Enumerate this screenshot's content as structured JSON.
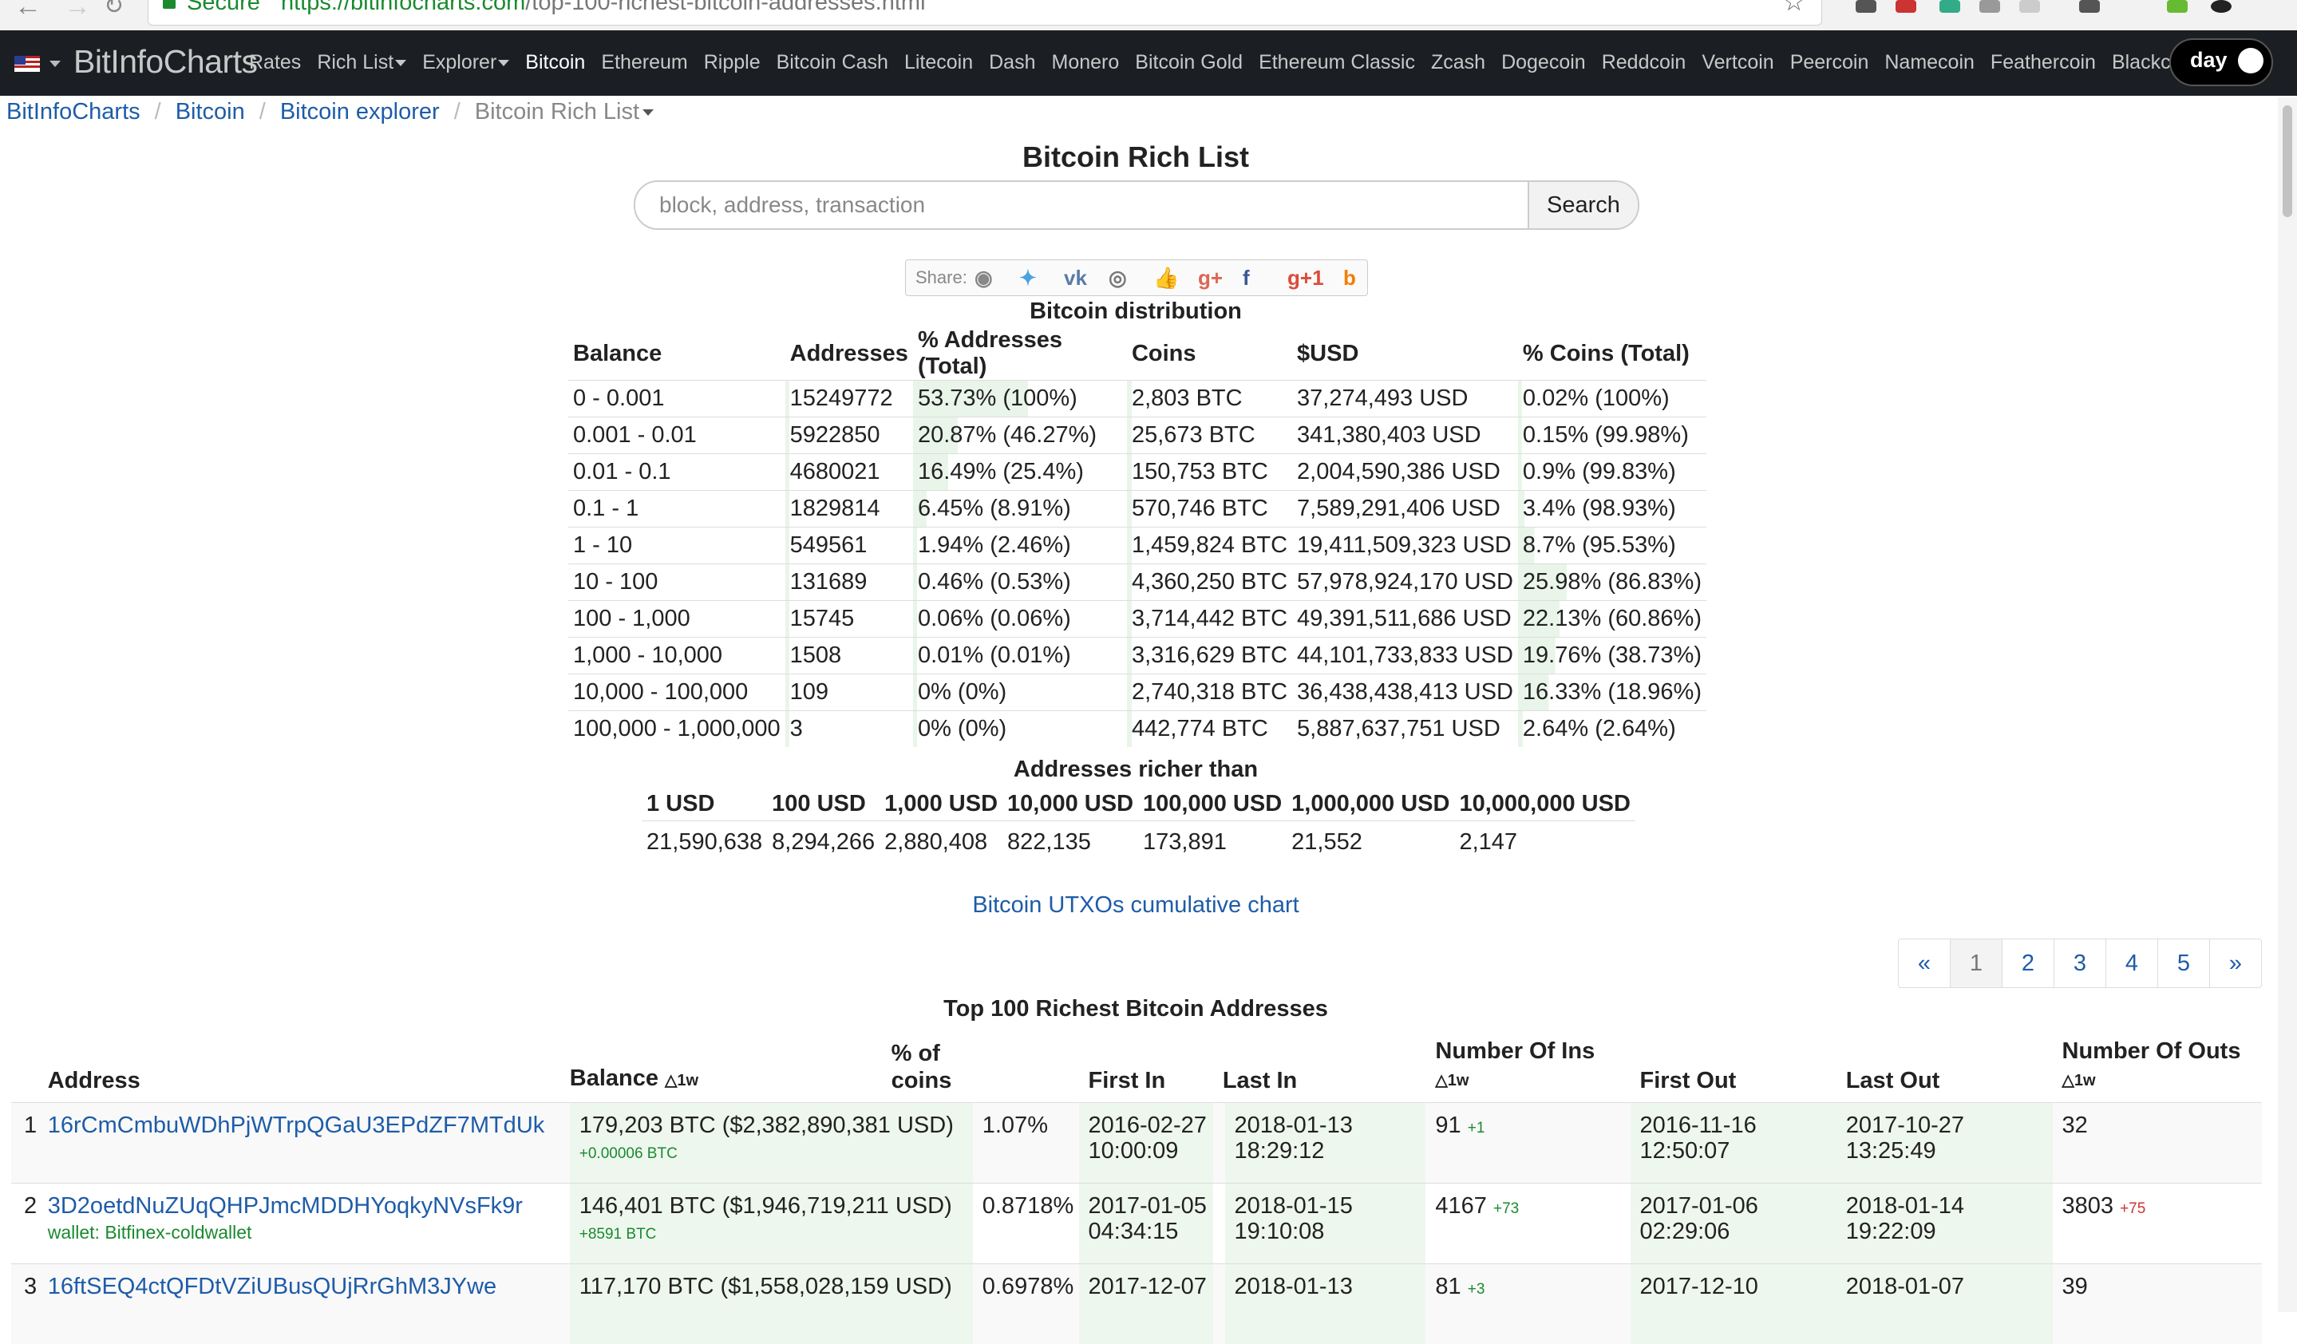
{
  "browser": {
    "secure_label": "Secure",
    "url_host": "https://bitinfocharts.com",
    "url_path": "/top-100-richest-bitcoin-addresses.html"
  },
  "navbar": {
    "brand": "BitInfoCharts",
    "links": [
      "Rates",
      "Rich List",
      "Explorer",
      "Bitcoin",
      "Ethereum",
      "Ripple",
      "Bitcoin Cash",
      "Litecoin",
      "Dash",
      "Monero",
      "Bitcoin Gold",
      "Ethereum Classic",
      "Zcash",
      "Dogecoin",
      "Reddcoin",
      "Vertcoin",
      "Peercoin",
      "Namecoin",
      "Feathercoin",
      "Blackcoin"
    ],
    "active_link": "Bitcoin",
    "toggle_label": "day"
  },
  "breadcrumb": {
    "items": [
      "BitInfoCharts",
      "Bitcoin",
      "Bitcoin explorer"
    ],
    "current": "Bitcoin Rich List"
  },
  "title": "Bitcoin Rich List",
  "search": {
    "placeholder": "block, address, transaction",
    "button": "Search"
  },
  "share": {
    "label": "Share:",
    "icons": [
      {
        "name": "reddit-icon",
        "glyph": "◉",
        "color": "#888888"
      },
      {
        "name": "twitter-icon",
        "glyph": "✦",
        "color": "#4aa3df"
      },
      {
        "name": "vk-icon",
        "glyph": "vk",
        "color": "#5a7ba8"
      },
      {
        "name": "weibo-icon",
        "glyph": "◎",
        "color": "#777777"
      },
      {
        "name": "like-icon",
        "glyph": "👍",
        "color": "#4a78c2"
      },
      {
        "name": "google-icon",
        "glyph": "g+",
        "color": "#dd6655"
      },
      {
        "name": "facebook-icon",
        "glyph": "f",
        "color": "#3b5998"
      },
      {
        "name": "google-plus-one-icon",
        "glyph": "g+1",
        "color": "#dd4b39"
      },
      {
        "name": "blogger-icon",
        "glyph": "b",
        "color": "#f57d00"
      }
    ]
  },
  "distribution": {
    "title": "Bitcoin distribution",
    "headers": [
      "Balance",
      "Addresses",
      "% Addresses (Total)",
      "Coins",
      "$USD",
      "% Coins (Total)"
    ],
    "rows": [
      [
        "0 - 0.001",
        "15249772",
        "53.73% (100%)",
        "2,803 BTC",
        "37,274,493 USD",
        "0.02% (100%)"
      ],
      [
        "0.001 - 0.01",
        "5922850",
        "20.87% (46.27%)",
        "25,673 BTC",
        "341,380,403 USD",
        "0.15% (99.98%)"
      ],
      [
        "0.01 - 0.1",
        "4680021",
        "16.49% (25.4%)",
        "150,753 BTC",
        "2,004,590,386 USD",
        "0.9% (99.83%)"
      ],
      [
        "0.1 - 1",
        "1829814",
        "6.45% (8.91%)",
        "570,746 BTC",
        "7,589,291,406 USD",
        "3.4% (98.93%)"
      ],
      [
        "1 - 10",
        "549561",
        "1.94% (2.46%)",
        "1,459,824 BTC",
        "19,411,509,323 USD",
        "8.7% (95.53%)"
      ],
      [
        "10 - 100",
        "131689",
        "0.46% (0.53%)",
        "4,360,250 BTC",
        "57,978,924,170 USD",
        "25.98% (86.83%)"
      ],
      [
        "100 - 1,000",
        "15745",
        "0.06% (0.06%)",
        "3,714,442 BTC",
        "49,391,511,686 USD",
        "22.13% (60.86%)"
      ],
      [
        "1,000 - 10,000",
        "1508",
        "0.01% (0.01%)",
        "3,316,629 BTC",
        "44,101,733,833 USD",
        "19.76% (38.73%)"
      ],
      [
        "10,000 - 100,000",
        "109",
        "0% (0%)",
        "2,740,318 BTC",
        "36,438,438,413 USD",
        "16.33% (18.96%)"
      ],
      [
        "100,000 - 1,000,000",
        "3",
        "0% (0%)",
        "442,774 BTC",
        "5,887,637,751 USD",
        "2.64% (2.64%)"
      ]
    ]
  },
  "richer": {
    "title": "Addresses richer than",
    "headers": [
      "1 USD",
      "100 USD",
      "1,000 USD",
      "10,000 USD",
      "100,000 USD",
      "1,000,000 USD",
      "10,000,000 USD"
    ],
    "values": [
      "21,590,638",
      "8,294,266",
      "2,880,408",
      "822,135",
      "173,891",
      "21,552",
      "2,147"
    ]
  },
  "utxo_link": "Bitcoin UTXOs cumulative chart",
  "pager": [
    "«",
    "1",
    "2",
    "3",
    "4",
    "5",
    "»"
  ],
  "top100": {
    "title": "Top 100 Richest Bitcoin Addresses",
    "headers": {
      "address": "Address",
      "balance": "Balance",
      "pct_line1": "% of",
      "pct_line2": "coins",
      "first_in": "First In",
      "last_in": "Last In",
      "ins": "Number Of Ins",
      "first_out": "First Out",
      "last_out": "Last Out",
      "outs": "Number Of Outs",
      "delta": "△1w"
    },
    "rows": [
      {
        "rank": "1",
        "address": "16rCmCmbuWDhPjWTrpQGaU3EPdZF7MTdUk",
        "wallet": "",
        "balance": "179,203 BTC ($2,382,890,381 USD)",
        "balance_change": "+0.00006 BTC",
        "pct": "1.07%",
        "first_in_date": "2016-02-27",
        "first_in_time": "10:00:09",
        "last_in_date": "2018-01-13",
        "last_in_time": "18:29:12",
        "ins": "91",
        "ins_change": "+1",
        "first_out_date": "2016-11-16",
        "first_out_time": "12:50:07",
        "last_out_date": "2017-10-27",
        "last_out_time": "13:25:49",
        "outs": "32",
        "outs_change": ""
      },
      {
        "rank": "2",
        "address": "3D2oetdNuZUqQHPJmcMDDHYoqkyNVsFk9r",
        "wallet": "wallet: Bitfinex-coldwallet",
        "balance": "146,401 BTC ($1,946,719,211 USD)",
        "balance_change": "+8591 BTC",
        "pct": "0.8718%",
        "first_in_date": "2017-01-05",
        "first_in_time": "04:34:15",
        "last_in_date": "2018-01-15",
        "last_in_time": "19:10:08",
        "ins": "4167",
        "ins_change": "+73",
        "first_out_date": "2017-01-06",
        "first_out_time": "02:29:06",
        "last_out_date": "2018-01-14",
        "last_out_time": "19:22:09",
        "outs": "3803",
        "outs_change": "+75"
      },
      {
        "rank": "3",
        "address": "16ftSEQ4ctQFDtVZiUBusQUjRrGhM3JYwe",
        "wallet": "",
        "balance": "117,170 BTC ($1,558,028,159 USD)",
        "balance_change": "",
        "pct": "0.6978%",
        "first_in_date": "2017-12-07",
        "first_in_time": "",
        "last_in_date": "2018-01-13",
        "last_in_time": "",
        "ins": "81",
        "ins_change": "+3",
        "first_out_date": "2017-12-10",
        "first_out_time": "",
        "last_out_date": "2018-01-07",
        "last_out_time": "",
        "outs": "39",
        "outs_change": ""
      }
    ]
  },
  "colors": {
    "navbar_bg": "#1b1f24",
    "link": "#1e5ca8",
    "green_bar": "#e9f5e9",
    "positive": "#1a8a2f",
    "negative": "#cc3333"
  }
}
